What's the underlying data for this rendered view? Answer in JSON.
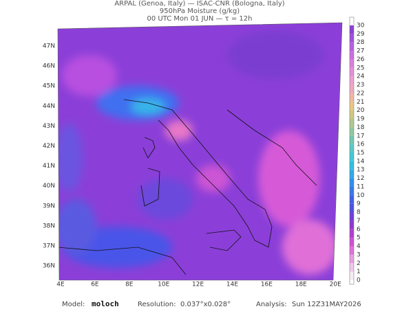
{
  "header": {
    "lines": [
      "ARPAL (Genoa, Italy)  —  ISAC-CNR (Bologna, Italy)",
      "950hPa Moisture (g/kg)",
      "00 UTC Mon 01 JUN  —  τ = 12h"
    ]
  },
  "map": {
    "lat_labels": [
      "47N",
      "46N",
      "45N",
      "44N",
      "43N",
      "42N",
      "41N",
      "40N",
      "39N",
      "38N",
      "37N",
      "36N"
    ],
    "lon_labels": [
      "4E",
      "6E",
      "8E",
      "10E",
      "12E",
      "14E",
      "16E",
      "18E",
      "20E"
    ]
  },
  "colorbar": {
    "labels": [
      0,
      1,
      2,
      3,
      4,
      5,
      6,
      7,
      8,
      9,
      10,
      11,
      12,
      13,
      14,
      15,
      16,
      17,
      18,
      19,
      20,
      21,
      22,
      23,
      24,
      25,
      26,
      27,
      28,
      29,
      30
    ]
  },
  "footer": {
    "model_label": "Model:",
    "model": "moloch",
    "resolution_label": "Resolution:",
    "resolution": "0.037°x0.028°",
    "analysis_label": "Analysis:",
    "analysis": "Sun 12Z31MAY2026"
  }
}
